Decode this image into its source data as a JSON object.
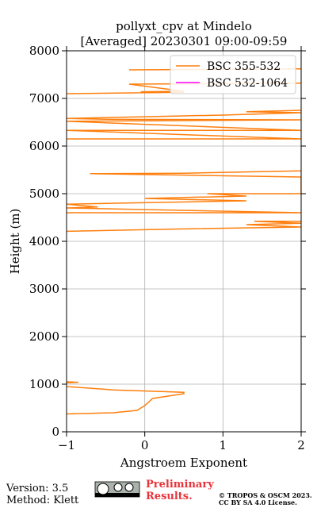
{
  "chart_data": {
    "type": "line",
    "title": "pollyxt_cpv at Mindelo",
    "subtitle": "[Averaged] 20230301 09:00-09:59",
    "x_label": "Angstroem Exponent",
    "y_label": "Height (m)",
    "xlim": [
      -1,
      2
    ],
    "xticks": [
      {
        "value": -1,
        "label": "−1"
      },
      0,
      1,
      2
    ],
    "ylim": [
      0,
      8000
    ],
    "yticks": [
      0,
      1000,
      2000,
      3000,
      4000,
      5000,
      6000,
      7000,
      8000
    ],
    "grid": true,
    "legend": "upper right",
    "series": [
      {
        "name": "BSC 355-532",
        "color": "#ff7f0e",
        "x": [
          -1,
          -0.4,
          -0.1,
          0,
          0.1,
          0.5,
          0.5,
          -0.4,
          -1,
          null,
          -1,
          -0.85,
          -1,
          null,
          -1,
          0.5,
          2,
          1.3,
          2,
          1.4,
          2,
          null,
          -1,
          2,
          -1,
          -0.6,
          -1,
          1.3,
          0,
          1.3,
          0.8,
          2,
          2,
          0.5,
          -0.7,
          0.5,
          2,
          null,
          -1,
          2,
          -1,
          2,
          -1,
          2,
          -0.4,
          -1,
          1,
          2,
          1.3,
          2,
          null,
          -1,
          0.5,
          -0.05,
          0.5,
          -0.2,
          2,
          null,
          -0.2,
          2
        ],
        "y": [
          375,
          400,
          450,
          550,
          700,
          800,
          830,
          880,
          950,
          null,
          1030,
          1040,
          1050,
          null,
          4210,
          4260,
          4300,
          4350,
          4380,
          4420,
          4420,
          null,
          4600,
          4600,
          4700,
          4720,
          4780,
          4850,
          4900,
          4950,
          5000,
          5000,
          5350,
          5390,
          5420,
          5430,
          5480,
          null,
          6150,
          6150,
          6330,
          6330,
          6520,
          6550,
          6560,
          6580,
          6650,
          6700,
          6720,
          6750,
          null,
          7100,
          7130,
          7140,
          7150,
          7300,
          7320,
          null,
          7600,
          7620
        ]
      },
      {
        "name": "BSC 532-1064",
        "color": "#ff00ff",
        "x": [],
        "y": []
      }
    ]
  },
  "footer": {
    "version": "Version: 3.5",
    "method": "Method: Klett",
    "preliminary": "Preliminary Results.",
    "copyright": "© TROPOS & OSCM 2023.",
    "license": "CC BY SA 4.0 License."
  }
}
